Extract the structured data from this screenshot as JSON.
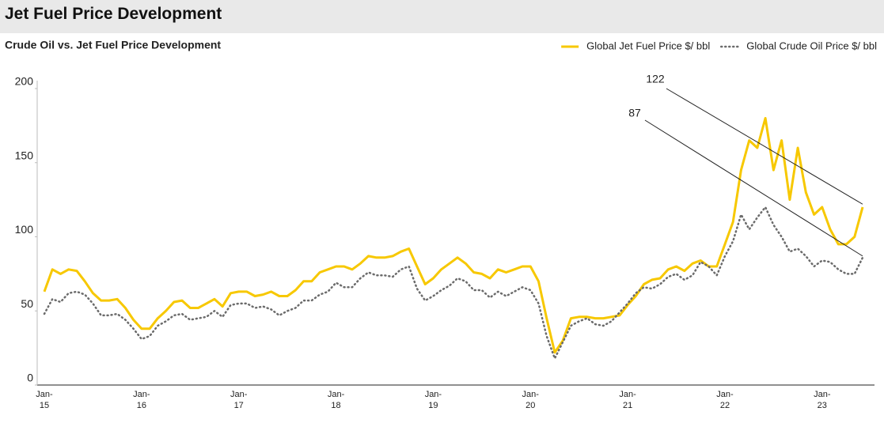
{
  "chart_data": {
    "type": "line",
    "title": "Jet Fuel Price Development",
    "subtitle": "Crude Oil vs. Jet Fuel Price Development",
    "categories": [
      "Jan-\n15",
      null,
      null,
      null,
      null,
      null,
      null,
      null,
      null,
      null,
      null,
      null,
      "Jan-\n16",
      null,
      null,
      null,
      null,
      null,
      null,
      null,
      null,
      null,
      null,
      null,
      "Jan-\n17",
      null,
      null,
      null,
      null,
      null,
      null,
      null,
      null,
      null,
      null,
      null,
      "Jan-\n18",
      null,
      null,
      null,
      null,
      null,
      null,
      null,
      null,
      null,
      null,
      null,
      "Jan-\n19",
      null,
      null,
      null,
      null,
      null,
      null,
      null,
      null,
      null,
      null,
      null,
      "Jan-\n20",
      null,
      null,
      null,
      null,
      null,
      null,
      null,
      null,
      null,
      null,
      null,
      "Jan-\n21",
      null,
      null,
      null,
      null,
      null,
      null,
      null,
      null,
      null,
      null,
      null,
      "Jan-\n22",
      null,
      null,
      null,
      null,
      null,
      null,
      null,
      null,
      null,
      null,
      null,
      "Jan-\n23",
      null,
      null,
      null,
      null,
      null
    ],
    "series": [
      {
        "name": "Global Jet Fuel Price $/ bbl",
        "color": "#f7c800",
        "style": "solid",
        "values": [
          63,
          78,
          75,
          78,
          77,
          70,
          62,
          57,
          57,
          58,
          52,
          44,
          38,
          38,
          45,
          50,
          56,
          57,
          52,
          52,
          55,
          58,
          53,
          62,
          63,
          63,
          60,
          61,
          63,
          60,
          60,
          64,
          70,
          70,
          76,
          78,
          80,
          80,
          78,
          82,
          87,
          86,
          86,
          87,
          90,
          92,
          80,
          68,
          72,
          78,
          82,
          86,
          82,
          76,
          75,
          72,
          78,
          76,
          78,
          80,
          80,
          70,
          45,
          22,
          30,
          45,
          46,
          46,
          45,
          45,
          46,
          47,
          54,
          60,
          68,
          71,
          72,
          78,
          80,
          77,
          82,
          84,
          80,
          80,
          95,
          110,
          145,
          165,
          160,
          180,
          145,
          165,
          125,
          160,
          130,
          115,
          120,
          105,
          95,
          95,
          100,
          120
        ]
      },
      {
        "name": "Global Crude Oil Price $/ bbl",
        "color": "#6b6b6b",
        "style": "dotted",
        "values": [
          48,
          58,
          56,
          62,
          63,
          61,
          55,
          47,
          47,
          48,
          44,
          38,
          31,
          33,
          40,
          43,
          47,
          48,
          44,
          45,
          46,
          50,
          46,
          54,
          55,
          55,
          52,
          53,
          51,
          47,
          50,
          52,
          57,
          57,
          61,
          63,
          69,
          66,
          66,
          72,
          76,
          74,
          74,
          73,
          78,
          80,
          65,
          57,
          60,
          64,
          67,
          72,
          70,
          64,
          64,
          59,
          63,
          60,
          63,
          66,
          64,
          55,
          33,
          18,
          29,
          40,
          43,
          45,
          41,
          40,
          43,
          49,
          55,
          62,
          66,
          65,
          68,
          73,
          75,
          71,
          74,
          83,
          80,
          74,
          87,
          97,
          115,
          105,
          113,
          120,
          108,
          100,
          90,
          92,
          87,
          80,
          84,
          83,
          78,
          75,
          75,
          86
        ]
      }
    ],
    "annotations": [
      122,
      87
    ],
    "ylim": [
      0,
      200
    ],
    "yticks": [
      0,
      50,
      100,
      150,
      200
    ],
    "grid": false
  }
}
